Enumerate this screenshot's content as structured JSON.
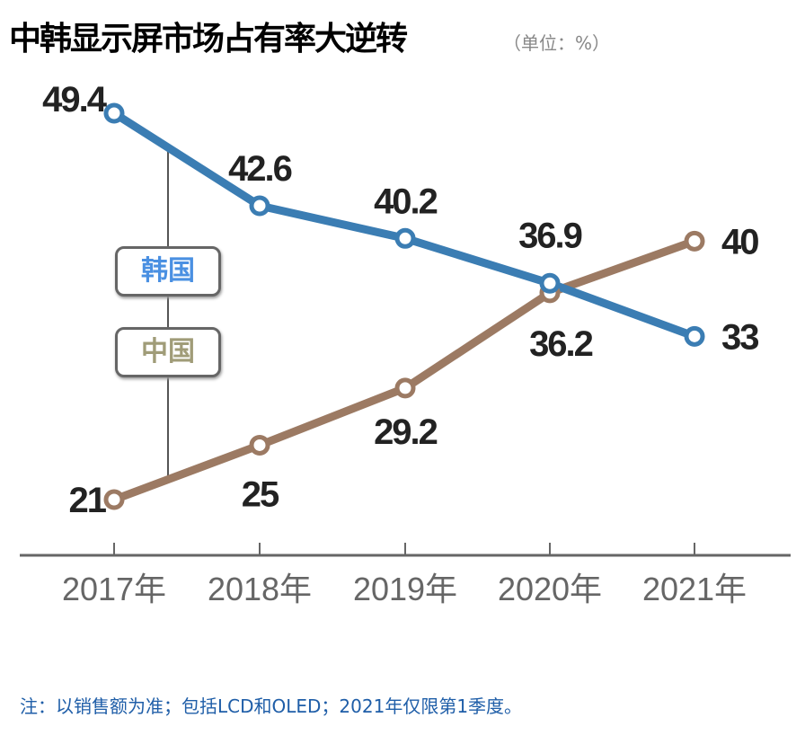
{
  "title": "中韩显示屏市场占有率大逆转",
  "unit": "（单位：%）",
  "footnote": "注：以销售额为准；包括LCD和OLED；2021年仅限第1季度。",
  "chart_data": {
    "type": "line",
    "title": "中韩显示屏市场占有率大逆转",
    "categories": [
      "2017年",
      "2018年",
      "2019年",
      "2020年",
      "2021年"
    ],
    "series": [
      {
        "name": "韩国",
        "values": [
          49.4,
          42.6,
          40.2,
          36.9,
          33
        ],
        "color": "#3b7db3",
        "label_color": "#4a90e2"
      },
      {
        "name": "中国",
        "values": [
          21,
          25,
          29.2,
          36.2,
          40
        ],
        "color": "#9c7a63",
        "label_color": "#a09c78"
      }
    ],
    "grid": false,
    "legend": "left"
  }
}
